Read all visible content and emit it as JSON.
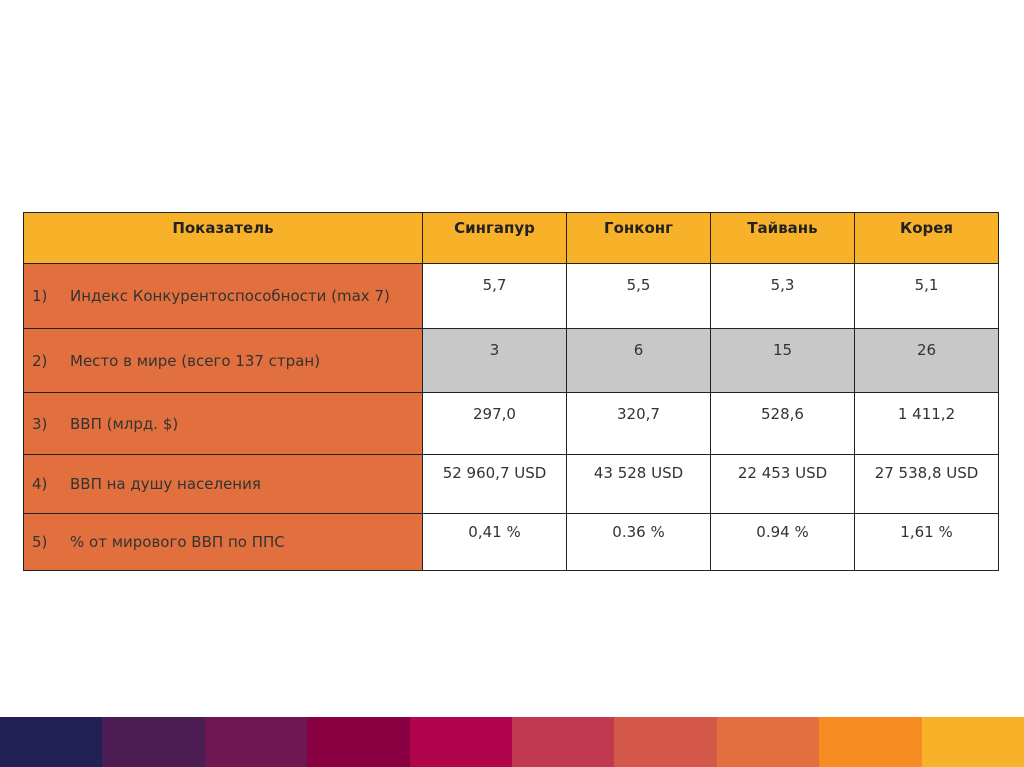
{
  "table": {
    "headers": [
      "Показатель",
      "Сингапур",
      "Гонконг",
      "Тайвань",
      "Корея"
    ],
    "rows": [
      {
        "num": "1)",
        "label": "Индекс Конкурентоспособности (max 7)",
        "values": [
          "5,7",
          "5,5",
          "5,3",
          "5,1"
        ]
      },
      {
        "num": "2)",
        "label": "Место в мире (всего 137 стран)",
        "values": [
          "3",
          "6",
          "15",
          "26"
        ]
      },
      {
        "num": "3)",
        "label": "ВВП (млрд. $)",
        "values": [
          "297,0",
          "320,7",
          "528,6",
          "1 411,2"
        ]
      },
      {
        "num": "4)",
        "label": "ВВП на душу населения",
        "values": [
          "52 960,7 USD",
          "43 528 USD",
          "22 453 USD",
          "27 538,8 USD"
        ]
      },
      {
        "num": "5)",
        "label": "% от мирового ВВП по ППС",
        "values": [
          "0,41 %",
          "0.36 %",
          "0.94 %",
          "1,61 %"
        ]
      }
    ]
  },
  "colors": {
    "header": "#f8b22a",
    "label": "#e2703e",
    "highlight_row": "#c8c8c8",
    "bands": [
      "#212156",
      "#4b1d53",
      "#6f1753",
      "#880041",
      "#b0044c",
      "#c0394f",
      "#d3584a",
      "#e2703e",
      "#f48c22",
      "#f8b22a"
    ]
  }
}
